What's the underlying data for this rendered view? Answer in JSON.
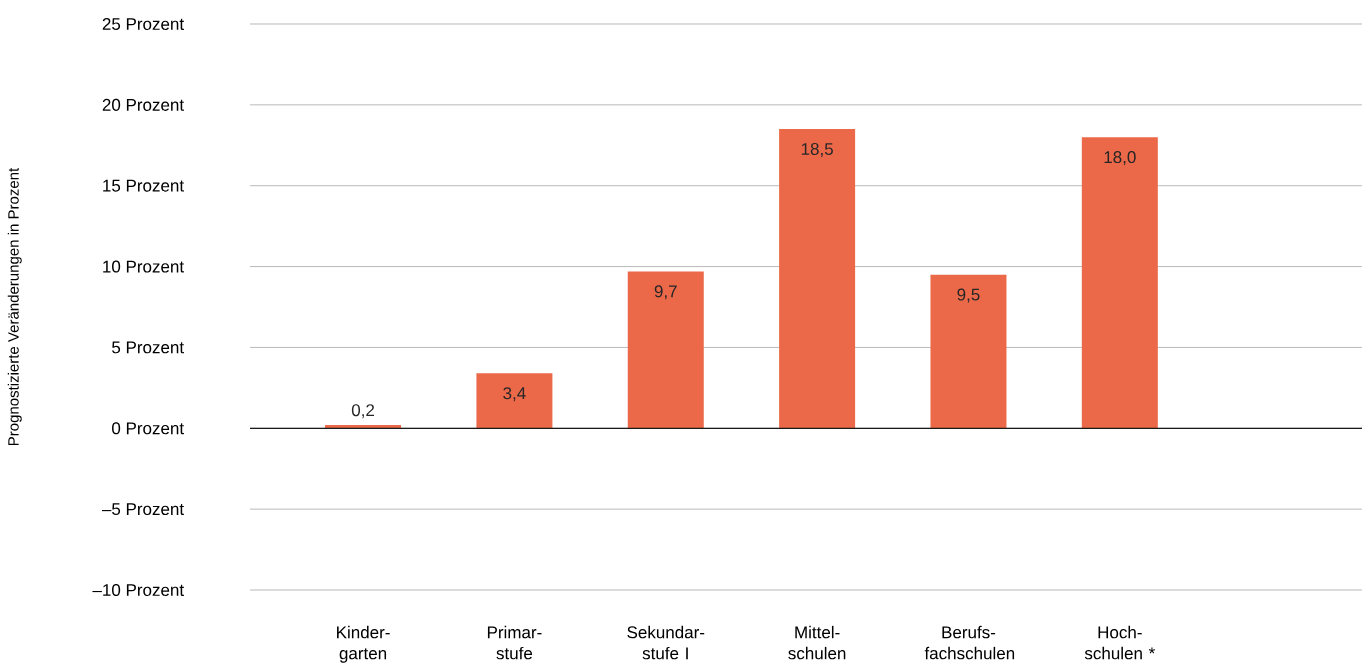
{
  "chart_data": {
    "type": "bar",
    "ylabel": "Prognostizierte Veränderungen in Prozent",
    "categories": [
      "Kinder-garten",
      "Primar-stufe",
      "Sekundar-stufe I",
      "Mittel-schulen",
      "Berufs-fachschulen",
      "Hoch-schulen *"
    ],
    "values": [
      0.2,
      3.4,
      9.7,
      18.5,
      9.5,
      18.0
    ],
    "value_labels": [
      "0,2",
      "3,4",
      "9,7",
      "18,5",
      "9,5",
      "18,0"
    ],
    "color": "#eb6849",
    "ylim": [
      -10,
      25
    ],
    "yticks": [
      {
        "value": -10,
        "label": "–10 Prozent"
      },
      {
        "value": -5,
        "label": "–5 Prozent"
      },
      {
        "value": 0,
        "label": "0 Prozent"
      },
      {
        "value": 5,
        "label": "5 Prozent"
      },
      {
        "value": 10,
        "label": "10 Prozent"
      },
      {
        "value": 15,
        "label": "15 Prozent"
      },
      {
        "value": 20,
        "label": "20 Prozent"
      },
      {
        "value": 25,
        "label": "25 Prozent"
      }
    ],
    "grid": "y",
    "ref_lines": [
      {
        "axis": "y",
        "value": 0,
        "color": "#1a1a1a"
      }
    ]
  }
}
